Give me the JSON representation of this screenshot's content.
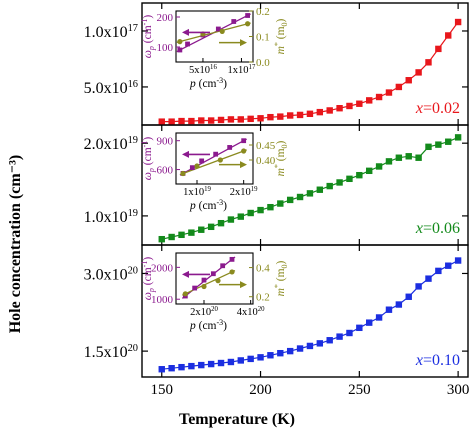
{
  "shared": {
    "xlabel": "Temperature (K)",
    "ylabel": "Hole concentration (cm⁻³)",
    "x_ticks": [
      "150",
      "200",
      "250",
      "300"
    ],
    "x_tick_values": [
      150,
      200,
      250,
      300
    ],
    "xlim": [
      140,
      305
    ]
  },
  "chart_data": [
    {
      "type": "scatter",
      "panel": "top",
      "color": "#e8161b",
      "label": "x=0.02",
      "label_var": "x",
      "label_val": "=0.02",
      "ylim": [
        1.6e+16,
        1.25e+17
      ],
      "y_ticks": [
        {
          "value": 5e+16,
          "mant": "5.0x10",
          "exp": "16"
        },
        {
          "value": 1e+17,
          "mant": "1.0x10",
          "exp": "17"
        }
      ],
      "x": [
        150,
        155,
        160,
        165,
        170,
        175,
        180,
        185,
        190,
        195,
        200,
        205,
        210,
        215,
        220,
        225,
        230,
        235,
        240,
        245,
        250,
        255,
        260,
        265,
        270,
        275,
        280,
        285,
        290,
        295,
        300
      ],
      "y": [
        1.9e+16,
        1.9e+16,
        1.95e+16,
        1.95e+16,
        2e+16,
        2e+16,
        2.05e+16,
        2.1e+16,
        2.1e+16,
        2.15e+16,
        2.2e+16,
        2.3e+16,
        2.35e+16,
        2.45e+16,
        2.5e+16,
        2.6e+16,
        2.75e+16,
        2.9e+16,
        3.1e+16,
        3.3e+16,
        3.5e+16,
        3.8e+16,
        4.1e+16,
        4.5e+16,
        5e+16,
        5.6e+16,
        6.3e+16,
        7.2e+16,
        8.4e+16,
        9.6e+16,
        1.08e+17
      ],
      "inset": {
        "color": "#8b1a8e",
        "color2": "#8a8a1f",
        "xlabel_var": "p",
        "xlabel_unit": " (cm",
        "xlabel_exp": "-3",
        "xlabel_end": ")",
        "ylabel_var": "ω",
        "ylabel_sub": "p",
        "ylabel_unit": " (cm",
        "ylabel_exp": "-1",
        "ylabel_end": ")",
        "y2label_var": "m",
        "y2label_sup": "*",
        "y2label_unit": " (m",
        "y2label_sub": "0",
        "y2label_end": ")",
        "xlim": [
          1.5e+16,
          1.15e+17
        ],
        "ylim": [
          50,
          220
        ],
        "y2lim": [
          0.0,
          0.2
        ],
        "x_ticks": [
          {
            "value": 5e+16,
            "mant": "5x10",
            "exp": "16"
          },
          {
            "value": 1e+17,
            "mant": "1x10",
            "exp": "17"
          }
        ],
        "y_ticks": [
          "100",
          "200"
        ],
        "y_tick_values": [
          100,
          200
        ],
        "y2_ticks": [
          "0.0",
          "0.1",
          "0.2"
        ],
        "y2_tick_values": [
          0.0,
          0.1,
          0.2
        ],
        "omega_x": [
          2e+16,
          3e+16,
          5e+16,
          7e+16,
          9e+16,
          1.08e+17
        ],
        "omega_y": [
          90,
          110,
          140,
          160,
          185,
          205
        ],
        "mass_x": [
          2e+16,
          5e+16,
          7.5e+16,
          1.08e+17
        ],
        "mass_y": [
          0.08,
          0.11,
          0.12,
          0.15
        ]
      }
    },
    {
      "type": "scatter",
      "panel": "middle",
      "color": "#138a1b",
      "label": "x=0.06",
      "label_var": "x",
      "label_val": "=0.06",
      "ylim": [
        6e+18,
        2.25e+19
      ],
      "y_ticks": [
        {
          "value": 1e+19,
          "mant": "1.0x10",
          "exp": "19"
        },
        {
          "value": 2e+19,
          "mant": "2.0x10",
          "exp": "19"
        }
      ],
      "x": [
        150,
        155,
        160,
        165,
        170,
        175,
        180,
        185,
        190,
        195,
        200,
        205,
        210,
        215,
        220,
        225,
        230,
        235,
        240,
        245,
        250,
        255,
        260,
        265,
        270,
        275,
        280,
        285,
        290,
        295,
        300
      ],
      "y": [
        6.8e+18,
        7.1e+18,
        7.4e+18,
        7.7e+18,
        8.1e+18,
        8.5e+18,
        9e+18,
        9.5e+18,
        9.9e+18,
        1.04e+19,
        1.08e+19,
        1.12e+19,
        1.17e+19,
        1.22e+19,
        1.26e+19,
        1.31e+19,
        1.36e+19,
        1.41e+19,
        1.46e+19,
        1.51e+19,
        1.56e+19,
        1.62e+19,
        1.68e+19,
        1.75e+19,
        1.8e+19,
        1.82e+19,
        1.8e+19,
        1.95e+19,
        1.98e+19,
        2.02e+19,
        2.08e+19
      ],
      "inset": {
        "color": "#8b1a8e",
        "color2": "#8a8a1f",
        "xlabel_var": "p",
        "xlabel_unit": " (cm",
        "xlabel_exp": "-3",
        "xlabel_end": ")",
        "ylabel_var": "ω",
        "ylabel_sub": "p",
        "ylabel_unit": " (cm",
        "ylabel_exp": "-1",
        "ylabel_end": ")",
        "y2label_var": "m",
        "y2label_sup": "*",
        "y2label_unit": " (m",
        "y2label_sub": "0",
        "y2label_end": ")",
        "xlim": [
          5.5e+18,
          2.2e+19
        ],
        "ylim": [
          450,
          980
        ],
        "y2lim": [
          0.32,
          0.49
        ],
        "x_ticks": [
          {
            "value": 1e+19,
            "mant": "1x10",
            "exp": "19"
          },
          {
            "value": 2e+19,
            "mant": "2x10",
            "exp": "19"
          }
        ],
        "y_ticks": [
          "600",
          "900"
        ],
        "y_tick_values": [
          600,
          900
        ],
        "y2_ticks": [
          "0.40",
          "0.45"
        ],
        "y2_tick_values": [
          0.4,
          0.45
        ],
        "omega_x": [
          7e+18,
          9e+18,
          1.1e+19,
          1.4e+19,
          1.7e+19,
          2e+19
        ],
        "omega_y": [
          560,
          620,
          690,
          760,
          830,
          900
        ],
        "mass_x": [
          7e+18,
          1e+19,
          1.5e+19,
          2e+19
        ],
        "mass_y": [
          0.355,
          0.38,
          0.4,
          0.43
        ]
      }
    },
    {
      "type": "scatter",
      "panel": "bottom",
      "color": "#1b2ee0",
      "label": "x=0.10",
      "label_var": "x",
      "label_val": "=0.10",
      "ylim": [
        1e+20,
        3.55e+20
      ],
      "y_ticks": [
        {
          "value": 1.5e+20,
          "mant": "1.5x10",
          "exp": "20"
        },
        {
          "value": 3e+20,
          "mant": "3.0x10",
          "exp": "20"
        }
      ],
      "x": [
        150,
        155,
        160,
        165,
        170,
        175,
        180,
        185,
        190,
        195,
        200,
        205,
        210,
        215,
        220,
        225,
        230,
        235,
        240,
        245,
        250,
        255,
        260,
        265,
        270,
        275,
        280,
        285,
        290,
        295,
        300
      ],
      "y": [
        1.15e+20,
        1.17e+20,
        1.19e+20,
        1.21e+20,
        1.23e+20,
        1.25e+20,
        1.27e+20,
        1.29e+20,
        1.32e+20,
        1.35e+20,
        1.38e+20,
        1.42e+20,
        1.46e+20,
        1.5e+20,
        1.55e+20,
        1.6e+20,
        1.65e+20,
        1.71e+20,
        1.78e+20,
        1.85e+20,
        1.95e+20,
        2.05e+20,
        2.15e+20,
        2.3e+20,
        2.4e+20,
        2.55e+20,
        2.75e+20,
        2.9e+20,
        3.05e+20,
        3.15e+20,
        3.25e+20
      ],
      "inset": {
        "color": "#8b1a8e",
        "color2": "#8a8a1f",
        "xlabel_var": "p",
        "xlabel_unit": " (cm",
        "xlabel_exp": "-3",
        "xlabel_end": ")",
        "ylabel_var": "ω",
        "ylabel_sub": "p",
        "ylabel_unit": " (cm",
        "ylabel_exp": "-1",
        "ylabel_end": ")",
        "y2label_var": "m",
        "y2label_sup": "*",
        "y2label_unit": " (m",
        "y2label_sub": "0",
        "y2label_end": ")",
        "xlim": [
          8e+19,
          4.1e+20
        ],
        "ylim": [
          850,
          2450
        ],
        "y2lim": [
          0.15,
          0.5
        ],
        "x_ticks": [
          {
            "value": 2e+20,
            "mant": "2x10",
            "exp": "20"
          },
          {
            "value": 4e+20,
            "mant": "4x10",
            "exp": "20"
          }
        ],
        "y_ticks": [
          "1000",
          "2000"
        ],
        "y_tick_values": [
          1000,
          2000
        ],
        "y2_ticks": [
          "0.2",
          "0.4"
        ],
        "y2_tick_values": [
          0.2,
          0.4
        ],
        "omega_x": [
          1.2e+20,
          1.6e+20,
          2e+20,
          2.4e+20,
          2.8e+20,
          3.2e+20
        ],
        "omega_y": [
          1100,
          1350,
          1600,
          1800,
          2050,
          2250
        ],
        "mass_x": [
          1.2e+20,
          2e+20,
          2.6e+20,
          3.2e+20
        ],
        "mass_y": [
          0.22,
          0.27,
          0.31,
          0.37
        ]
      }
    }
  ]
}
